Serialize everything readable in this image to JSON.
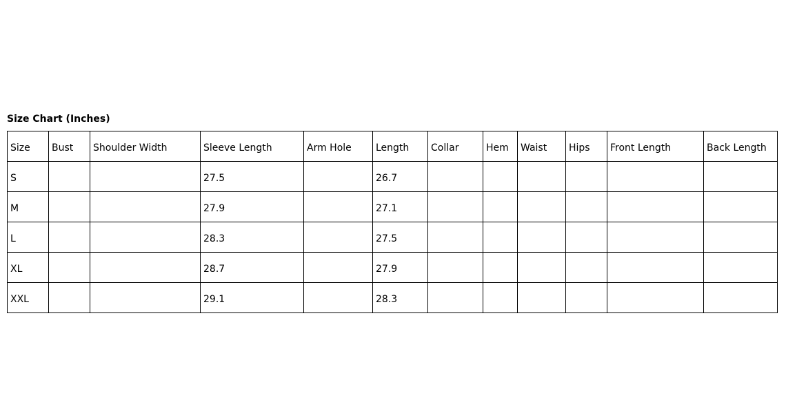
{
  "title": "Size Chart (Inches)",
  "table": {
    "headers": [
      "Size",
      "Bust",
      "Shoulder Width",
      "Sleeve Length",
      "Arm Hole",
      "Length",
      "Collar",
      "Hem",
      "Waist",
      "Hips",
      "Front Length",
      "Back Length"
    ],
    "rows": [
      [
        "S",
        "",
        "",
        "27.5",
        "",
        "26.7",
        "",
        "",
        "",
        "",
        "",
        ""
      ],
      [
        "M",
        "",
        "",
        "27.9",
        "",
        "27.1",
        "",
        "",
        "",
        "",
        "",
        ""
      ],
      [
        "L",
        "",
        "",
        "28.3",
        "",
        "27.5",
        "",
        "",
        "",
        "",
        "",
        ""
      ],
      [
        "XL",
        "",
        "",
        "28.7",
        "",
        "27.9",
        "",
        "",
        "",
        "",
        "",
        ""
      ],
      [
        "XXL",
        "",
        "",
        "29.1",
        "",
        "28.3",
        "",
        "",
        "",
        "",
        "",
        ""
      ]
    ]
  }
}
